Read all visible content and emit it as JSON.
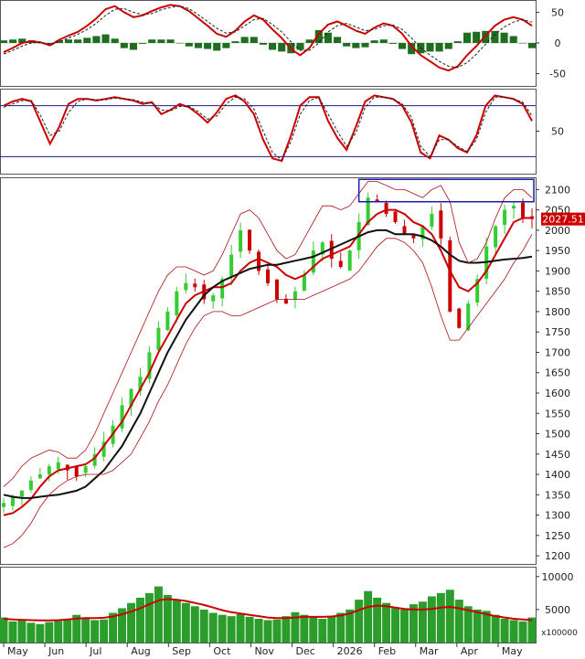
{
  "chart_data": [
    {
      "type": "line",
      "panel": "macd",
      "y_ticks": [
        50,
        0,
        -50
      ],
      "ylim": [
        -70,
        70
      ],
      "series": [
        {
          "role": "macd",
          "color": "#cc0000",
          "style": "solid",
          "values": [
            -15,
            -8,
            0,
            3,
            1,
            -4,
            5,
            12,
            18,
            28,
            40,
            55,
            60,
            50,
            42,
            45,
            52,
            58,
            62,
            60,
            52,
            40,
            28,
            15,
            10,
            20,
            35,
            45,
            38,
            22,
            8,
            -10,
            -20,
            -8,
            15,
            30,
            35,
            28,
            20,
            15,
            25,
            32,
            28,
            15,
            -5,
            -20,
            -30,
            -40,
            -45,
            -38,
            -20,
            -5,
            12,
            28,
            38,
            42,
            38,
            28
          ]
        },
        {
          "role": "signal",
          "color": "#222222",
          "style": "dashed",
          "values": [
            -18,
            -12,
            -5,
            0,
            1,
            -2,
            2,
            8,
            14,
            22,
            32,
            45,
            55,
            56,
            50,
            46,
            48,
            54,
            58,
            60,
            56,
            46,
            35,
            24,
            16,
            18,
            28,
            38,
            40,
            30,
            18,
            2,
            -12,
            -12,
            0,
            18,
            28,
            32,
            26,
            20,
            22,
            28,
            29,
            22,
            8,
            -8,
            -20,
            -30,
            -38,
            -40,
            -32,
            -18,
            -2,
            14,
            26,
            34,
            38,
            34
          ]
        }
      ],
      "histogram_color": "#1f6e1f"
    },
    {
      "type": "line",
      "panel": "stochastic",
      "y_ticks": [
        50
      ],
      "ylim": [
        0,
        100
      ],
      "levels": [
        80,
        20
      ],
      "level_color": "#1a1a8c",
      "series": [
        {
          "role": "k",
          "color": "#cc0000",
          "style": "solid",
          "values": [
            80,
            85,
            88,
            85,
            60,
            35,
            55,
            82,
            88,
            88,
            86,
            88,
            90,
            88,
            86,
            82,
            84,
            70,
            75,
            82,
            78,
            70,
            60,
            72,
            88,
            92,
            85,
            70,
            40,
            18,
            15,
            45,
            80,
            90,
            90,
            62,
            42,
            28,
            55,
            85,
            92,
            90,
            88,
            80,
            60,
            25,
            18,
            45,
            40,
            30,
            25,
            45,
            80,
            92,
            90,
            88,
            82,
            62
          ]
        },
        {
          "role": "d",
          "color": "#222222",
          "style": "dashed",
          "values": [
            78,
            82,
            86,
            86,
            68,
            45,
            50,
            72,
            85,
            88,
            87,
            87,
            89,
            88,
            87,
            84,
            83,
            75,
            74,
            79,
            79,
            73,
            64,
            68,
            82,
            90,
            88,
            76,
            50,
            25,
            16,
            38,
            70,
            86,
            90,
            70,
            50,
            32,
            48,
            78,
            90,
            90,
            88,
            82,
            66,
            32,
            20,
            40,
            40,
            32,
            26,
            40,
            72,
            90,
            90,
            88,
            84,
            68
          ]
        }
      ]
    },
    {
      "type": "line",
      "panel": "price",
      "y_ticks": [
        2100,
        2050,
        2000,
        1950,
        1900,
        1850,
        1800,
        1750,
        1700,
        1650,
        1600,
        1550,
        1500,
        1450,
        1400,
        1350,
        1300,
        1250,
        1200
      ],
      "ylim": [
        1180,
        2130
      ],
      "last_price_label": "2027.51",
      "last_price": 2027.51,
      "x_labels": [
        "May",
        "Jun",
        "Jul",
        "Aug",
        "Sep",
        "Oct",
        "Nov",
        "Dec",
        "2026",
        "Feb",
        "Mar",
        "Apr",
        "May"
      ],
      "candles": [
        1330,
        1345,
        1360,
        1385,
        1400,
        1420,
        1430,
        1410,
        1395,
        1420,
        1450,
        1480,
        1520,
        1570,
        1610,
        1640,
        1700,
        1760,
        1800,
        1850,
        1870,
        1860,
        1830,
        1840,
        1880,
        1940,
        2000,
        1950,
        1900,
        1870,
        1830,
        1820,
        1850,
        1890,
        1950,
        1970,
        1930,
        1910,
        1950,
        2020,
        2080,
        2070,
        2040,
        2020,
        1990,
        1980,
        2010,
        2040,
        1980,
        1800,
        1760,
        1820,
        1880,
        1960,
        2010,
        2050,
        2060,
        2030,
        2027.51
      ],
      "series": [
        {
          "role": "ma20",
          "color": "#cc0000",
          "values": [
            1300,
            1305,
            1320,
            1340,
            1370,
            1395,
            1410,
            1415,
            1420,
            1425,
            1440,
            1470,
            1500,
            1530,
            1570,
            1610,
            1650,
            1700,
            1740,
            1780,
            1820,
            1840,
            1850,
            1860,
            1860,
            1870,
            1900,
            1920,
            1930,
            1920,
            1910,
            1890,
            1880,
            1890,
            1910,
            1930,
            1940,
            1950,
            1960,
            1990,
            2020,
            2040,
            2050,
            2050,
            2040,
            2020,
            2010,
            1990,
            1950,
            1900,
            1860,
            1850,
            1870,
            1900,
            1940,
            1980,
            2020,
            2030,
            2030
          ]
        },
        {
          "role": "ma50",
          "color": "#111111",
          "values": [
            1350,
            1345,
            1342,
            1342,
            1345,
            1348,
            1350,
            1355,
            1360,
            1370,
            1390,
            1410,
            1440,
            1470,
            1510,
            1550,
            1600,
            1650,
            1700,
            1740,
            1780,
            1810,
            1840,
            1860,
            1875,
            1885,
            1895,
            1905,
            1910,
            1915,
            1915,
            1920,
            1925,
            1930,
            1935,
            1945,
            1955,
            1965,
            1975,
            1985,
            1995,
            2000,
            2000,
            1990,
            1990,
            1990,
            1985,
            1975,
            1960,
            1940,
            1925,
            1920,
            1920,
            1922,
            1925,
            1928,
            1930,
            1932,
            1935
          ]
        },
        {
          "role": "bb_upper",
          "color": "#aa1111",
          "values": [
            1370,
            1390,
            1420,
            1440,
            1450,
            1460,
            1455,
            1440,
            1440,
            1460,
            1500,
            1550,
            1600,
            1650,
            1700,
            1750,
            1800,
            1850,
            1890,
            1910,
            1910,
            1900,
            1890,
            1900,
            1940,
            1990,
            2040,
            2050,
            2030,
            1990,
            1950,
            1930,
            1940,
            1980,
            2020,
            2060,
            2060,
            2050,
            2060,
            2090,
            2120,
            2120,
            2110,
            2100,
            2100,
            2090,
            2080,
            2100,
            2110,
            2070,
            1970,
            1920,
            1930,
            1970,
            2030,
            2080,
            2100,
            2100,
            2080
          ]
        },
        {
          "role": "bb_lower",
          "color": "#aa1111",
          "values": [
            1220,
            1230,
            1250,
            1280,
            1320,
            1350,
            1370,
            1385,
            1395,
            1400,
            1400,
            1400,
            1410,
            1430,
            1450,
            1490,
            1530,
            1580,
            1620,
            1670,
            1720,
            1760,
            1790,
            1800,
            1800,
            1790,
            1790,
            1800,
            1810,
            1820,
            1830,
            1830,
            1830,
            1830,
            1840,
            1850,
            1860,
            1870,
            1880,
            1900,
            1930,
            1960,
            1980,
            1980,
            1970,
            1950,
            1920,
            1860,
            1790,
            1730,
            1730,
            1760,
            1790,
            1820,
            1850,
            1880,
            1920,
            1950,
            1990
          ]
        }
      ],
      "up_color": "#33cc33",
      "down_color": "#cc0000",
      "annotation_box_color": "#1a1aaa"
    },
    {
      "type": "bar",
      "panel": "volume",
      "y_ticks": [
        10000,
        5000
      ],
      "ylim": [
        0,
        11500
      ],
      "unit_label": "x100000",
      "bar_color": "#2a9d2a",
      "ma_color": "#cc0000",
      "values": [
        3800,
        3200,
        3500,
        3000,
        2800,
        3100,
        3300,
        3600,
        4200,
        3800,
        3400,
        3500,
        4500,
        5200,
        6000,
        6800,
        7500,
        8500,
        7200,
        6500,
        6000,
        5500,
        5000,
        4500,
        4200,
        4000,
        4300,
        3900,
        3600,
        3400,
        3500,
        4000,
        4600,
        4200,
        3800,
        3600,
        4000,
        4500,
        5000,
        6500,
        7800,
        6800,
        6000,
        5200,
        5000,
        5800,
        6200,
        7000,
        7500,
        8000,
        6500,
        5500,
        5000,
        4800,
        4200,
        3600,
        3400,
        3200,
        3800
      ],
      "ma_values": [
        3600,
        3500,
        3450,
        3400,
        3350,
        3350,
        3400,
        3500,
        3650,
        3700,
        3700,
        3750,
        3950,
        4300,
        4700,
        5200,
        5800,
        6400,
        6600,
        6500,
        6300,
        6000,
        5700,
        5300,
        4900,
        4600,
        4400,
        4200,
        4000,
        3800,
        3700,
        3700,
        3800,
        3900,
        3900,
        3900,
        3950,
        4100,
        4400,
        4900,
        5400,
        5600,
        5500,
        5300,
        5100,
        5000,
        5000,
        5100,
        5300,
        5400,
        5200,
        4900,
        4600,
        4300,
        4000,
        3800,
        3600,
        3500,
        3400
      ]
    }
  ]
}
